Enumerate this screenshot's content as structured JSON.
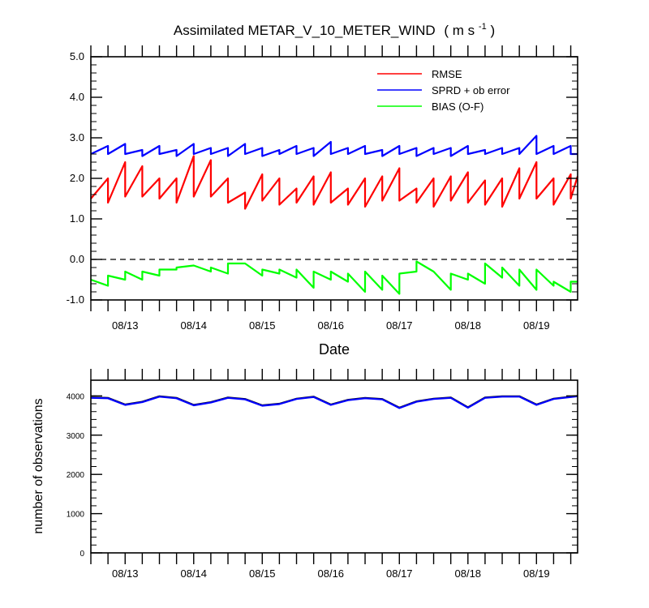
{
  "chart_data": [
    {
      "type": "line",
      "title": "Assimilated METAR_V_10_METER_WIND",
      "title_units": "( m s",
      "title_units_exp": "-1",
      "title_units_close": " )",
      "xlabel": "Date",
      "ylabel": "",
      "ylim": [
        -1.0,
        5.0
      ],
      "xlim": [
        0,
        7.1
      ],
      "yticks": [
        -1.0,
        0.0,
        1.0,
        2.0,
        3.0,
        4.0,
        5.0
      ],
      "ytick_labels": [
        "-1.0",
        "0.0",
        "1.0",
        "2.0",
        "3.0",
        "4.0",
        "5.0"
      ],
      "xticks": [
        0.5,
        1.5,
        2.5,
        3.5,
        4.5,
        5.5,
        6.5
      ],
      "xtick_labels": [
        "08/13",
        "08/14",
        "08/15",
        "08/16",
        "08/17",
        "08/18",
        "08/19"
      ],
      "zero_line": 0.0,
      "legend_placement": "top-right",
      "series": [
        {
          "name": "RMSE",
          "color": "#ff0000",
          "x": [
            0,
            0.25,
            0.25,
            0.5,
            0.5,
            0.75,
            0.75,
            1.0,
            1.0,
            1.25,
            1.25,
            1.5,
            1.5,
            1.75,
            1.75,
            2.0,
            2.0,
            2.25,
            2.25,
            2.5,
            2.5,
            2.75,
            2.75,
            3.0,
            3.0,
            3.25,
            3.25,
            3.5,
            3.5,
            3.75,
            3.75,
            4.0,
            4.0,
            4.25,
            4.25,
            4.5,
            4.5,
            4.75,
            4.75,
            5.0,
            5.0,
            5.25,
            5.25,
            5.5,
            5.5,
            5.75,
            5.75,
            6.0,
            6.0,
            6.25,
            6.25,
            6.5,
            6.5,
            6.75,
            6.75,
            7.0,
            7.0,
            7.1
          ],
          "y": [
            1.5,
            2.0,
            1.4,
            2.4,
            1.55,
            2.3,
            1.55,
            2.0,
            1.5,
            2.0,
            1.4,
            2.55,
            1.55,
            2.45,
            1.55,
            2.0,
            1.4,
            1.65,
            1.25,
            2.1,
            1.45,
            2.0,
            1.35,
            1.75,
            1.4,
            2.05,
            1.35,
            2.15,
            1.4,
            1.75,
            1.35,
            2.0,
            1.3,
            2.05,
            1.45,
            2.25,
            1.45,
            1.75,
            1.4,
            2.0,
            1.3,
            2.05,
            1.45,
            2.15,
            1.4,
            1.95,
            1.35,
            2.0,
            1.3,
            2.25,
            1.5,
            2.4,
            1.5,
            2.0,
            1.35,
            2.1,
            1.5,
            2.05
          ]
        },
        {
          "name": "SPRD + ob error",
          "color": "#0000ff",
          "x": [
            0,
            0.25,
            0.25,
            0.5,
            0.5,
            0.75,
            0.75,
            1.0,
            1.0,
            1.25,
            1.25,
            1.5,
            1.5,
            1.75,
            1.75,
            2.0,
            2.0,
            2.25,
            2.25,
            2.5,
            2.5,
            2.75,
            2.75,
            3.0,
            3.0,
            3.25,
            3.25,
            3.5,
            3.5,
            3.75,
            3.75,
            4.0,
            4.0,
            4.25,
            4.25,
            4.5,
            4.5,
            4.75,
            4.75,
            5.0,
            5.0,
            5.25,
            5.25,
            5.5,
            5.5,
            5.75,
            5.75,
            6.0,
            6.0,
            6.25,
            6.25,
            6.5,
            6.5,
            6.75,
            6.75,
            7.0,
            7.0,
            7.1
          ],
          "y": [
            2.6,
            2.8,
            2.6,
            2.85,
            2.6,
            2.7,
            2.55,
            2.8,
            2.6,
            2.7,
            2.55,
            2.85,
            2.6,
            2.75,
            2.6,
            2.75,
            2.55,
            2.85,
            2.6,
            2.75,
            2.55,
            2.7,
            2.6,
            2.8,
            2.6,
            2.75,
            2.55,
            2.9,
            2.6,
            2.75,
            2.6,
            2.8,
            2.6,
            2.7,
            2.55,
            2.8,
            2.6,
            2.75,
            2.55,
            2.75,
            2.6,
            2.75,
            2.55,
            2.8,
            2.6,
            2.7,
            2.6,
            2.75,
            2.6,
            2.75,
            2.6,
            3.05,
            2.6,
            2.8,
            2.6,
            2.8,
            2.6,
            2.6
          ]
        },
        {
          "name": "BIAS (O-F)",
          "color": "#00ff00",
          "x": [
            0,
            0.25,
            0.25,
            0.5,
            0.5,
            0.75,
            0.75,
            1.0,
            1.0,
            1.25,
            1.25,
            1.5,
            1.5,
            1.75,
            1.75,
            2.0,
            2.0,
            2.25,
            2.25,
            2.5,
            2.5,
            2.75,
            2.75,
            3.0,
            3.0,
            3.25,
            3.25,
            3.5,
            3.5,
            3.75,
            3.75,
            4.0,
            4.0,
            4.25,
            4.25,
            4.5,
            4.5,
            4.75,
            4.75,
            5.0,
            5.0,
            5.25,
            5.25,
            5.5,
            5.5,
            5.75,
            5.75,
            6.0,
            6.0,
            6.25,
            6.25,
            6.5,
            6.5,
            6.75,
            6.75,
            7.0,
            7.0,
            7.1
          ],
          "y": [
            -0.5,
            -0.65,
            -0.4,
            -0.5,
            -0.3,
            -0.5,
            -0.3,
            -0.4,
            -0.25,
            -0.25,
            -0.2,
            -0.15,
            -0.15,
            -0.3,
            -0.2,
            -0.35,
            -0.1,
            -0.1,
            -0.1,
            -0.4,
            -0.25,
            -0.35,
            -0.25,
            -0.45,
            -0.25,
            -0.7,
            -0.3,
            -0.5,
            -0.3,
            -0.55,
            -0.35,
            -0.8,
            -0.3,
            -0.75,
            -0.4,
            -0.85,
            -0.35,
            -0.3,
            -0.05,
            -0.3,
            -0.3,
            -0.75,
            -0.35,
            -0.5,
            -0.35,
            -0.6,
            -0.1,
            -0.45,
            -0.2,
            -0.65,
            -0.25,
            -0.75,
            -0.25,
            -0.65,
            -0.55,
            -0.8,
            -0.55,
            -0.55
          ]
        }
      ]
    },
    {
      "type": "line",
      "title": "",
      "xlabel": "",
      "ylabel": "number of observations",
      "ylim": [
        0,
        4400
      ],
      "xlim": [
        0,
        7.1
      ],
      "yticks": [
        0,
        1000,
        2000,
        3000,
        4000
      ],
      "ytick_labels": [
        "0",
        "1000",
        "2000",
        "3000",
        "4000"
      ],
      "xticks": [
        0.5,
        1.5,
        2.5,
        3.5,
        4.5,
        5.5,
        6.5
      ],
      "xtick_labels": [
        "08/13",
        "08/14",
        "08/15",
        "08/16",
        "08/17",
        "08/18",
        "08/19"
      ],
      "series": [
        {
          "color": "#000000",
          "x": [
            0,
            0.25,
            0.5,
            0.75,
            1.0,
            1.25,
            1.5,
            1.75,
            2.0,
            2.25,
            2.5,
            2.75,
            3.0,
            3.25,
            3.5,
            3.75,
            4.0,
            4.25,
            4.5,
            4.75,
            5.0,
            5.25,
            5.5,
            5.75,
            6.0,
            6.25,
            6.5,
            6.75,
            7.0,
            7.1
          ],
          "y": [
            3960,
            3950,
            3780,
            3850,
            3990,
            3950,
            3770,
            3840,
            3960,
            3920,
            3760,
            3800,
            3930,
            3980,
            3780,
            3900,
            3950,
            3920,
            3700,
            3860,
            3930,
            3960,
            3710,
            3960,
            3990,
            3990,
            3780,
            3930,
            3980,
            4000
          ]
        },
        {
          "color": "#0000ff",
          "x": [
            0,
            0.25,
            0.5,
            0.75,
            1.0,
            1.25,
            1.5,
            1.75,
            2.0,
            2.25,
            2.5,
            2.75,
            3.0,
            3.25,
            3.5,
            3.75,
            4.0,
            4.25,
            4.5,
            4.75,
            5.0,
            5.25,
            5.5,
            5.75,
            6.0,
            6.25,
            6.5,
            6.75,
            7.0,
            7.1
          ],
          "y": [
            3950,
            3940,
            3770,
            3840,
            3980,
            3940,
            3760,
            3830,
            3950,
            3910,
            3750,
            3790,
            3920,
            3970,
            3770,
            3890,
            3940,
            3910,
            3690,
            3850,
            3920,
            3950,
            3700,
            3950,
            3980,
            3980,
            3770,
            3920,
            3970,
            3990
          ]
        }
      ]
    }
  ]
}
